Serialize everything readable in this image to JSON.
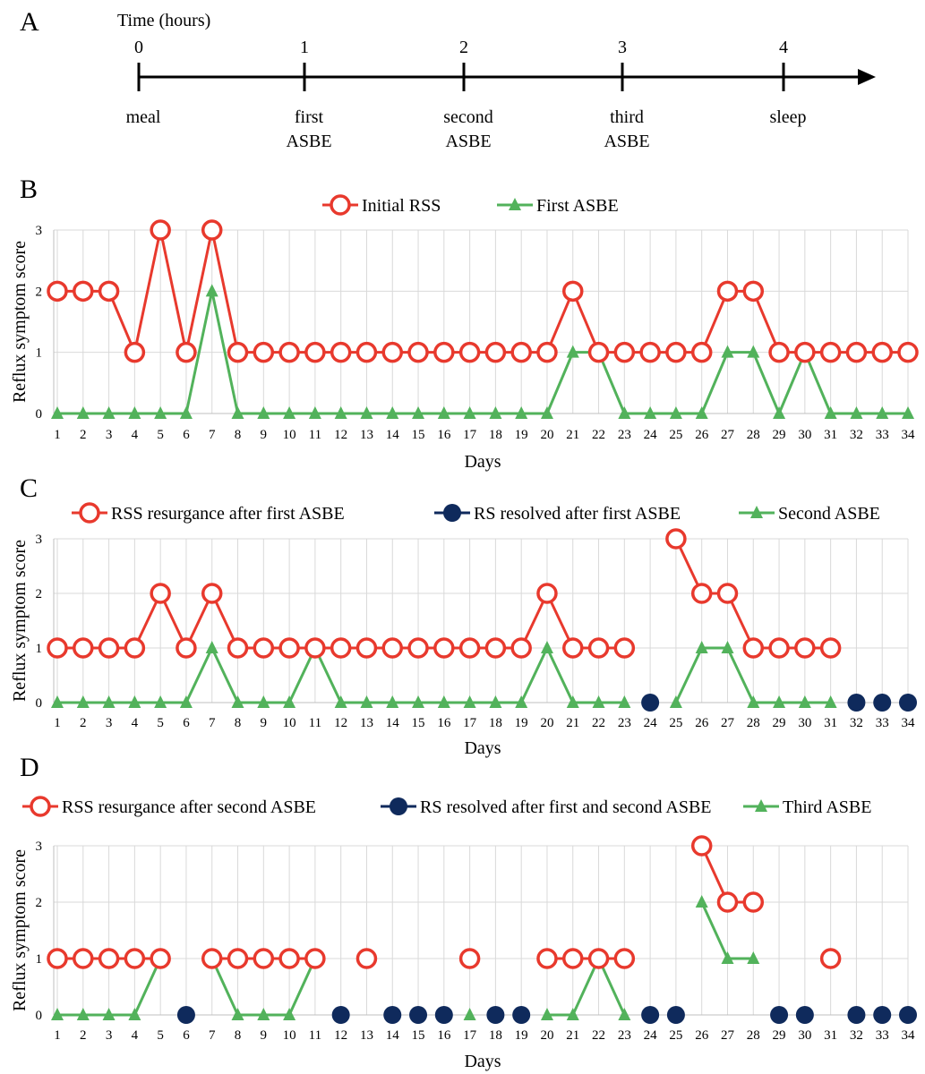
{
  "panel_labels": [
    "A",
    "B",
    "C",
    "D"
  ],
  "timeline": {
    "axis_title": "Time (hours)",
    "ticks": [
      "0",
      "1",
      "2",
      "3",
      "4"
    ],
    "events": [
      [
        "meal"
      ],
      [
        "first",
        "ASBE"
      ],
      [
        "second",
        "ASBE"
      ],
      [
        "third",
        "ASBE"
      ],
      [
        "sleep"
      ]
    ]
  },
  "colors": {
    "red": "#e8392d",
    "navy": "#0f2a5c",
    "green": "#52b25b",
    "grid": "#d9d9d9",
    "axis": "#000000"
  },
  "chart_data": [
    {
      "panel": "B",
      "type": "line",
      "xlabel": "Days",
      "ylabel": "Reflux symptom score",
      "ylim": [
        0,
        3
      ],
      "yticks": [
        "0",
        "1",
        "2",
        "3"
      ],
      "categories": [
        "1",
        "2",
        "3",
        "4",
        "5",
        "6",
        "7",
        "8",
        "9",
        "10",
        "11",
        "12",
        "13",
        "14",
        "15",
        "16",
        "17",
        "18",
        "19",
        "20",
        "21",
        "22",
        "23",
        "24",
        "25",
        "26",
        "27",
        "28",
        "29",
        "30",
        "31",
        "32",
        "33",
        "34"
      ],
      "legend_position": "top-center",
      "series": [
        {
          "name": "Initial RSS",
          "marker": "open-circle",
          "color": "red",
          "values": [
            2,
            2,
            2,
            1,
            3,
            1,
            3,
            1,
            1,
            1,
            1,
            1,
            1,
            1,
            1,
            1,
            1,
            1,
            1,
            1,
            2,
            1,
            1,
            1,
            1,
            1,
            2,
            2,
            1,
            1,
            1,
            1,
            1,
            1
          ]
        },
        {
          "name": "First ASBE",
          "marker": "triangle",
          "color": "green",
          "values": [
            0,
            0,
            0,
            0,
            0,
            0,
            2,
            0,
            0,
            0,
            0,
            0,
            0,
            0,
            0,
            0,
            0,
            0,
            0,
            0,
            1,
            1,
            0,
            0,
            0,
            0,
            1,
            1,
            0,
            1,
            0,
            0,
            0,
            0
          ]
        }
      ]
    },
    {
      "panel": "C",
      "type": "line",
      "xlabel": "Days",
      "ylabel": "Reflux symptom score",
      "ylim": [
        0,
        3
      ],
      "yticks": [
        "0",
        "1",
        "2",
        "3"
      ],
      "categories": [
        "1",
        "2",
        "3",
        "4",
        "5",
        "6",
        "7",
        "8",
        "9",
        "10",
        "11",
        "12",
        "13",
        "14",
        "15",
        "16",
        "17",
        "18",
        "19",
        "20",
        "21",
        "22",
        "23",
        "24",
        "25",
        "26",
        "27",
        "28",
        "29",
        "30",
        "31",
        "32",
        "33",
        "34"
      ],
      "legend_position": "top-center",
      "series": [
        {
          "name": "RSS resurgance after first ASBE",
          "marker": "open-circle",
          "color": "red",
          "values": [
            1,
            1,
            1,
            1,
            2,
            1,
            2,
            1,
            1,
            1,
            1,
            1,
            1,
            1,
            1,
            1,
            1,
            1,
            1,
            2,
            1,
            1,
            1,
            null,
            3,
            2,
            2,
            1,
            1,
            1,
            1,
            null,
            null,
            null
          ]
        },
        {
          "name": "RS resolved after first ASBE",
          "marker": "filled-circle",
          "color": "navy",
          "values": [
            null,
            null,
            null,
            null,
            null,
            null,
            null,
            null,
            null,
            null,
            null,
            null,
            null,
            null,
            null,
            null,
            null,
            null,
            null,
            null,
            null,
            null,
            null,
            0,
            null,
            null,
            null,
            null,
            null,
            null,
            null,
            0,
            0,
            0
          ]
        },
        {
          "name": "Second ASBE",
          "marker": "triangle",
          "color": "green",
          "values": [
            0,
            0,
            0,
            0,
            0,
            0,
            1,
            0,
            0,
            0,
            1,
            0,
            0,
            0,
            0,
            0,
            0,
            0,
            0,
            1,
            0,
            0,
            0,
            null,
            0,
            1,
            1,
            0,
            0,
            0,
            0,
            null,
            null,
            null
          ]
        }
      ]
    },
    {
      "panel": "D",
      "type": "line",
      "xlabel": "Days",
      "ylabel": "Reflux symptom score",
      "ylim": [
        0,
        3
      ],
      "yticks": [
        "0",
        "1",
        "2",
        "3"
      ],
      "categories": [
        "1",
        "2",
        "3",
        "4",
        "5",
        "6",
        "7",
        "8",
        "9",
        "10",
        "11",
        "12",
        "13",
        "14",
        "15",
        "16",
        "17",
        "18",
        "19",
        "20",
        "21",
        "22",
        "23",
        "24",
        "25",
        "26",
        "27",
        "28",
        "29",
        "30",
        "31",
        "32",
        "33",
        "34"
      ],
      "legend_position": "top-center",
      "series": [
        {
          "name": "RSS resurgance after second ASBE",
          "marker": "open-circle",
          "color": "red",
          "values": [
            1,
            1,
            1,
            1,
            1,
            null,
            1,
            1,
            1,
            1,
            1,
            null,
            1,
            null,
            null,
            null,
            1,
            null,
            null,
            1,
            1,
            1,
            1,
            null,
            null,
            3,
            2,
            2,
            null,
            null,
            1,
            null,
            null,
            null
          ]
        },
        {
          "name": "RS resolved after first and second ASBE",
          "marker": "filled-circle",
          "color": "navy",
          "values": [
            null,
            null,
            null,
            null,
            null,
            0,
            null,
            null,
            null,
            null,
            null,
            0,
            null,
            0,
            0,
            0,
            null,
            0,
            0,
            null,
            null,
            null,
            null,
            0,
            0,
            null,
            null,
            null,
            0,
            0,
            null,
            0,
            0,
            0
          ]
        },
        {
          "name": "Third ASBE",
          "marker": "triangle",
          "color": "green",
          "values": [
            0,
            0,
            0,
            0,
            1,
            null,
            1,
            0,
            0,
            0,
            1,
            null,
            1,
            null,
            null,
            null,
            0,
            null,
            null,
            0,
            0,
            1,
            0,
            null,
            null,
            2,
            1,
            1,
            null,
            null,
            1,
            null,
            null,
            null
          ]
        }
      ]
    }
  ]
}
